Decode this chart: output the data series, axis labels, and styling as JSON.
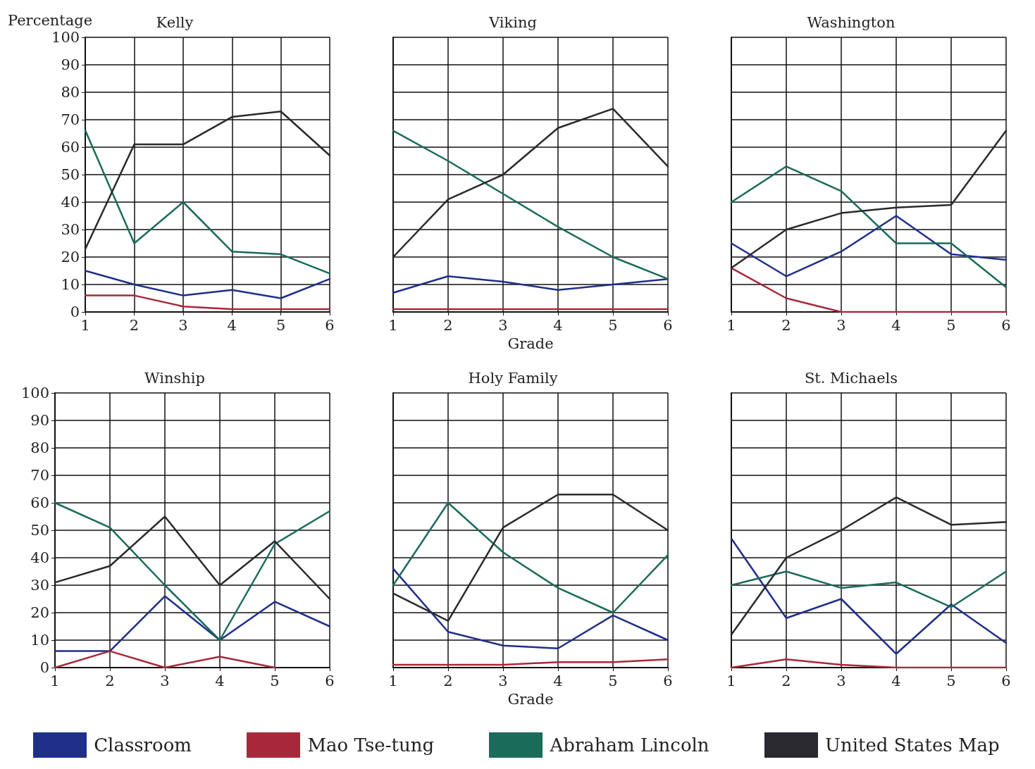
{
  "chart_data": [
    {
      "type": "line",
      "title": "Kelly",
      "ylabel": "Percentage",
      "x": [
        1,
        2,
        3,
        4,
        5,
        6
      ],
      "xlim": [
        1,
        6
      ],
      "xticks": [
        1,
        2,
        3,
        4,
        5,
        6
      ],
      "ylim": [
        0,
        100
      ],
      "yticks": [
        0,
        10,
        20,
        30,
        40,
        50,
        60,
        70,
        80,
        90,
        100
      ],
      "grid": true,
      "legend": "bottom",
      "marker": "none",
      "line_style": "solid",
      "series": [
        {
          "name": "Classroom",
          "color": "#1f2f8a",
          "values": [
            15,
            10,
            6,
            8,
            5,
            12
          ]
        },
        {
          "name": "Mao Tse-tung",
          "color": "#a8283a",
          "values": [
            6,
            6,
            2,
            1,
            1,
            1
          ]
        },
        {
          "name": "Abraham Lincoln",
          "color": "#1a6b5a",
          "values": [
            66,
            25,
            40,
            22,
            21,
            14
          ]
        },
        {
          "name": "United States Map",
          "color": "#2a2a2e",
          "values": [
            23,
            61,
            61,
            71,
            73,
            57
          ]
        }
      ]
    },
    {
      "type": "line",
      "title": "Viking",
      "xlabel": "Grade",
      "x": [
        1,
        2,
        3,
        4,
        5,
        6
      ],
      "xlim": [
        1,
        6
      ],
      "xticks": [
        1,
        2,
        3,
        4,
        5,
        6
      ],
      "ylim": [
        0,
        100
      ],
      "yticks": [
        0,
        10,
        20,
        30,
        40,
        50,
        60,
        70,
        80,
        90,
        100
      ],
      "grid": true,
      "tick_labels": "x",
      "marker": "none",
      "line_style": "solid",
      "series": [
        {
          "color": "#1f2f8a",
          "values": [
            7,
            13,
            11,
            8,
            10,
            12
          ]
        },
        {
          "color": "#a8283a",
          "values": [
            1,
            1,
            1,
            1,
            1,
            1
          ]
        },
        {
          "color": "#1a6b5a",
          "values": [
            66,
            55,
            43,
            31,
            20,
            12
          ]
        },
        {
          "color": "#2a2a2e",
          "values": [
            20,
            41,
            50,
            67,
            74,
            53
          ]
        }
      ]
    },
    {
      "type": "line",
      "title": "Washington",
      "x": [
        1,
        2,
        3,
        4,
        5,
        6
      ],
      "xlim": [
        1,
        6
      ],
      "xticks": [
        1,
        2,
        3,
        4,
        5,
        6
      ],
      "ylim": [
        0,
        100
      ],
      "yticks": [
        0,
        10,
        20,
        30,
        40,
        50,
        60,
        70,
        80,
        90,
        100
      ],
      "grid": true,
      "tick_labels": "x",
      "marker": "none",
      "line_style": "solid",
      "series": [
        {
          "color": "#1f2f8a",
          "values": [
            25,
            13,
            22,
            35,
            21,
            19
          ]
        },
        {
          "color": "#a8283a",
          "values": [
            16,
            5,
            0,
            0,
            0,
            0
          ]
        },
        {
          "color": "#1a6b5a",
          "values": [
            40,
            53,
            44,
            25,
            25,
            9
          ]
        },
        {
          "color": "#2a2a2e",
          "values": [
            16,
            30,
            36,
            38,
            39,
            66
          ]
        }
      ]
    },
    {
      "type": "line",
      "title": "Winship",
      "x": [
        1,
        2,
        3,
        4,
        5,
        6
      ],
      "xlim": [
        1,
        6
      ],
      "xticks": [
        1,
        2,
        3,
        4,
        5,
        6
      ],
      "ylim": [
        0,
        100
      ],
      "yticks": [
        0,
        10,
        20,
        30,
        40,
        50,
        60,
        70,
        80,
        90,
        100
      ],
      "grid": true,
      "marker": "none",
      "line_style": "solid",
      "series": [
        {
          "color": "#1f2f8a",
          "values": [
            6,
            6,
            26,
            10,
            24,
            15
          ]
        },
        {
          "color": "#a8283a",
          "values": [
            0,
            6,
            0,
            4,
            0,
            null
          ]
        },
        {
          "color": "#1a6b5a",
          "values": [
            60,
            51,
            30,
            10,
            45,
            57
          ]
        },
        {
          "color": "#2a2a2e",
          "values": [
            31,
            37,
            55,
            30,
            46,
            25
          ]
        }
      ]
    },
    {
      "type": "line",
      "title": "Holy Family",
      "xlabel": "Grade",
      "x": [
        1,
        2,
        3,
        4,
        5,
        6
      ],
      "xlim": [
        1,
        6
      ],
      "xticks": [
        1,
        2,
        3,
        4,
        5,
        6
      ],
      "ylim": [
        0,
        100
      ],
      "yticks": [
        0,
        10,
        20,
        30,
        40,
        50,
        60,
        70,
        80,
        90,
        100
      ],
      "grid": true,
      "tick_labels": "x",
      "marker": "none",
      "line_style": "solid",
      "series": [
        {
          "color": "#1f2f8a",
          "values": [
            36,
            13,
            8,
            7,
            19,
            10
          ]
        },
        {
          "color": "#a8283a",
          "values": [
            1,
            1,
            1,
            2,
            2,
            3
          ]
        },
        {
          "color": "#1a6b5a",
          "values": [
            30,
            60,
            42,
            29,
            20,
            41
          ]
        },
        {
          "color": "#2a2a2e",
          "values": [
            27,
            17,
            51,
            63,
            63,
            50
          ]
        }
      ]
    },
    {
      "type": "line",
      "title": "St. Michaels",
      "x": [
        1,
        2,
        3,
        4,
        5,
        6
      ],
      "xlim": [
        1,
        6
      ],
      "xticks": [
        1,
        2,
        3,
        4,
        5,
        6
      ],
      "ylim": [
        0,
        100
      ],
      "yticks": [
        0,
        10,
        20,
        30,
        40,
        50,
        60,
        70,
        80,
        90,
        100
      ],
      "grid": true,
      "tick_labels": "x",
      "marker": "none",
      "line_style": "solid",
      "series": [
        {
          "color": "#1f2f8a",
          "values": [
            47,
            18,
            25,
            5,
            23,
            9
          ]
        },
        {
          "color": "#a8283a",
          "values": [
            0,
            3,
            1,
            0,
            0,
            0
          ]
        },
        {
          "color": "#1a6b5a",
          "values": [
            30,
            35,
            29,
            31,
            22,
            35
          ]
        },
        {
          "color": "#2a2a2e",
          "values": [
            12,
            40,
            50,
            62,
            52,
            53
          ]
        }
      ]
    }
  ]
}
